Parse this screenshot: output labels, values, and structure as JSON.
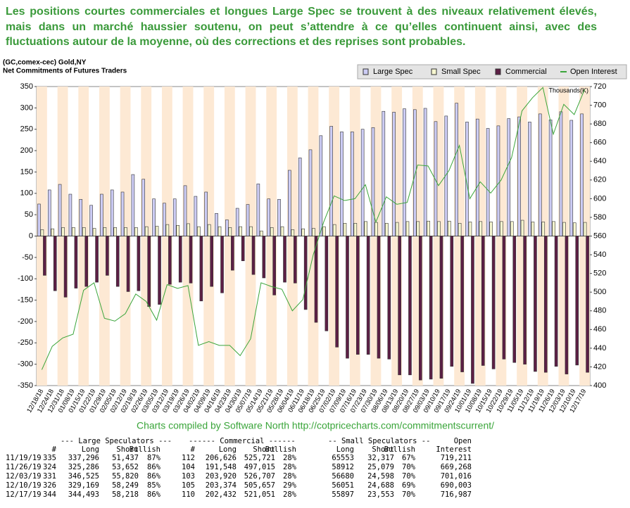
{
  "intro": "Les positions courtes commerciales et longues Large Spec se trouvent à des niveaux relativement élevés, mais dans un marché haussier soutenu, on peut s’attendre à ce qu’elles continuent ainsi, avec des fluctuations autour de la moyenne, où des corrections et des reprises sont probables.",
  "chart_data": {
    "type": "bar",
    "title": "(GC,comex-cec) Gold,NY",
    "subtitle": "Net Commitments of Futures Traders",
    "y2_label": "Thousands(K)",
    "legend": "top-right",
    "grid": false,
    "categories": [
      "12/18/18",
      "12/24/18",
      "12/31/18",
      "01/08/19",
      "01/15/19",
      "01/22/19",
      "01/29/19",
      "02/05/19",
      "02/12/19",
      "02/19/19",
      "02/26/19",
      "03/05/19",
      "03/12/19",
      "03/19/19",
      "03/26/19",
      "04/02/19",
      "04/09/19",
      "04/16/19",
      "04/23/19",
      "04/30/19",
      "05/07/19",
      "05/14/19",
      "05/21/19",
      "05/28/19",
      "06/04/19",
      "06/11/19",
      "06/18/19",
      "06/25/19",
      "07/02/19",
      "07/09/19",
      "07/16/19",
      "07/23/19",
      "07/30/19",
      "08/06/19",
      "08/13/19",
      "08/20/19",
      "08/27/19",
      "09/03/19",
      "09/10/19",
      "09/17/19",
      "09/24/19",
      "10/01/19",
      "10/08/19",
      "10/15/19",
      "10/22/19",
      "10/29/19",
      "11/05/19",
      "11/12/19",
      "11/19/19",
      "11/26/19",
      "12/03/19",
      "12/10/19",
      "12/17/19"
    ],
    "series": [
      {
        "name": "Large Spec",
        "color": "#ccccf5",
        "values": [
          75,
          108,
          121,
          98,
          86,
          72,
          98,
          108,
          103,
          144,
          133,
          87,
          77,
          87,
          118,
          93,
          103,
          53,
          38,
          65,
          74,
          122,
          87,
          86,
          154,
          183,
          202,
          235,
          257,
          244,
          244,
          250,
          254,
          292,
          290,
          298,
          296,
          299,
          268,
          281,
          311,
          267,
          274,
          252,
          258,
          275,
          279,
          267,
          286,
          272,
          291,
          271,
          286
        ]
      },
      {
        "name": "Small Spec",
        "color": "#f7f7d0",
        "values": [
          15,
          17,
          20,
          20,
          20,
          18,
          20,
          20,
          20,
          20,
          22,
          23,
          27,
          25,
          29,
          22,
          27,
          22,
          20,
          22,
          22,
          12,
          20,
          22,
          15,
          17,
          18,
          22,
          27,
          30,
          30,
          34,
          32,
          30,
          32,
          34,
          34,
          35,
          34,
          35,
          30,
          33,
          34,
          33,
          34,
          34,
          37,
          33,
          33,
          34,
          32,
          31,
          32
        ]
      },
      {
        "name": "Commercial",
        "color": "#5c1f45",
        "values": [
          -92,
          -128,
          -143,
          -122,
          -118,
          -108,
          -92,
          -118,
          -130,
          -128,
          -165,
          -160,
          -113,
          -108,
          -110,
          -152,
          -118,
          -133,
          -80,
          -58,
          -90,
          -98,
          -138,
          -108,
          -110,
          -172,
          -202,
          -222,
          -260,
          -286,
          -277,
          -277,
          -286,
          -288,
          -325,
          -325,
          -337,
          -335,
          -333,
          -305,
          -318,
          -345,
          -303,
          -311,
          -288,
          -296,
          -300,
          -317,
          -319,
          -305,
          -323,
          -302,
          -319
        ]
      },
      {
        "name": "Open Interest",
        "color": "#3aa53a",
        "axis": "y2",
        "values": [
          417,
          442,
          451,
          455,
          502,
          510,
          472,
          469,
          477,
          498,
          490,
          470,
          508,
          504,
          507,
          443,
          447,
          443,
          443,
          432,
          450,
          510,
          506,
          503,
          480,
          492,
          540,
          575,
          603,
          598,
          600,
          615,
          575,
          602,
          594,
          596,
          636,
          635,
          614,
          630,
          657,
          600,
          618,
          606,
          620,
          644,
          694,
          708,
          719,
          669,
          701,
          690,
          717
        ]
      }
    ],
    "ylim": [
      -350,
      350
    ],
    "yticks": [
      -350,
      -300,
      -250,
      -200,
      -150,
      -100,
      -50,
      0,
      50,
      100,
      150,
      200,
      250,
      300,
      350
    ],
    "y2lim": [
      400,
      720
    ],
    "y2ticks": [
      400,
      420,
      440,
      460,
      480,
      500,
      520,
      540,
      560,
      580,
      600,
      620,
      640,
      660,
      680,
      700,
      720
    ],
    "caption": "Charts compiled by Software North  http://cotpricecharts.com/commitmentscurrent/"
  },
  "table": {
    "groups": [
      "--- Large Speculators ---",
      "------ Commercial ------",
      "-- Small Speculators --",
      "Open"
    ],
    "headers": [
      "#",
      "Long",
      "Short",
      "Bullish",
      "#",
      "Long",
      "Short",
      "Bullish",
      "Long",
      "Short",
      "Bullish",
      "Interest"
    ],
    "rows": [
      [
        "11/19/19",
        "335",
        "337,296",
        "51,437",
        "87%",
        "112",
        "206,626",
        "525,721",
        "28%",
        "65553",
        "32,317",
        "67%",
        "719,211"
      ],
      [
        "11/26/19",
        "324",
        "325,286",
        "53,652",
        "86%",
        "104",
        "191,548",
        "497,015",
        "28%",
        "58912",
        "25,079",
        "70%",
        "669,268"
      ],
      [
        "12/03/19",
        "331",
        "346,525",
        "55,820",
        "86%",
        "103",
        "203,920",
        "526,707",
        "28%",
        "56680",
        "24,598",
        "70%",
        "701,016"
      ],
      [
        "12/10/19",
        "326",
        "329,169",
        "58,249",
        "85%",
        "105",
        "203,374",
        "505,657",
        "29%",
        "56051",
        "24,688",
        "69%",
        "690,003"
      ],
      [
        "12/17/19",
        "344",
        "344,493",
        "58,218",
        "86%",
        "110",
        "202,432",
        "521,051",
        "28%",
        "55897",
        "23,553",
        "70%",
        "716,987"
      ]
    ]
  }
}
